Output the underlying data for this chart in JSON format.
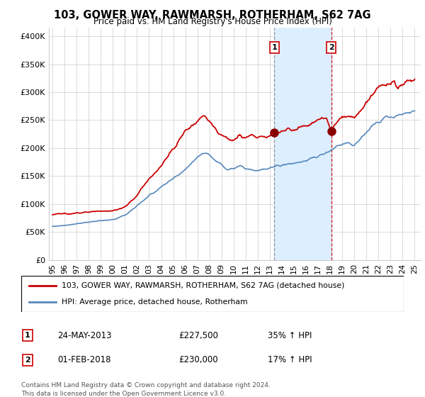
{
  "title": "103, GOWER WAY, RAWMARSH, ROTHERHAM, S62 7AG",
  "subtitle": "Price paid vs. HM Land Registry's House Price Index (HPI)",
  "ylabel_ticks": [
    "£0",
    "£50K",
    "£100K",
    "£150K",
    "£200K",
    "£250K",
    "£300K",
    "£350K",
    "£400K"
  ],
  "ytick_vals": [
    0,
    50000,
    100000,
    150000,
    200000,
    250000,
    300000,
    350000,
    400000
  ],
  "ylim": [
    0,
    415000
  ],
  "xlim_start": 1994.7,
  "xlim_end": 2025.5,
  "red_color": "#cc0000",
  "blue_color": "#5588bb",
  "blue_fill_color": "#ddeeff",
  "marker1_x": 2013.38,
  "marker1_y": 227500,
  "marker2_x": 2018.08,
  "marker2_y": 230000,
  "transaction1": {
    "label": "1",
    "date": "24-MAY-2013",
    "price": "£227,500",
    "hpi": "35% ↑ HPI"
  },
  "transaction2": {
    "label": "2",
    "date": "01-FEB-2018",
    "price": "£230,000",
    "hpi": "17% ↑ HPI"
  },
  "legend_line1": "103, GOWER WAY, RAWMARSH, ROTHERHAM, S62 7AG (detached house)",
  "legend_line2": "HPI: Average price, detached house, Rotherham",
  "footer": "Contains HM Land Registry data © Crown copyright and database right 2024.\nThis data is licensed under the Open Government Licence v3.0.",
  "x_ticks": [
    1995,
    1996,
    1997,
    1998,
    1999,
    2000,
    2001,
    2002,
    2003,
    2004,
    2005,
    2006,
    2007,
    2008,
    2009,
    2010,
    2011,
    2012,
    2013,
    2014,
    2015,
    2016,
    2017,
    2018,
    2019,
    2020,
    2021,
    2022,
    2023,
    2024,
    2025
  ],
  "x_tick_labels": [
    "95",
    "96",
    "97",
    "98",
    "99",
    "00",
    "01",
    "02",
    "03",
    "04",
    "05",
    "06",
    "07",
    "08",
    "09",
    "10",
    "11",
    "12",
    "13",
    "14",
    "15",
    "16",
    "17",
    "18",
    "19",
    "20",
    "21",
    "22",
    "23",
    "24",
    "25"
  ]
}
